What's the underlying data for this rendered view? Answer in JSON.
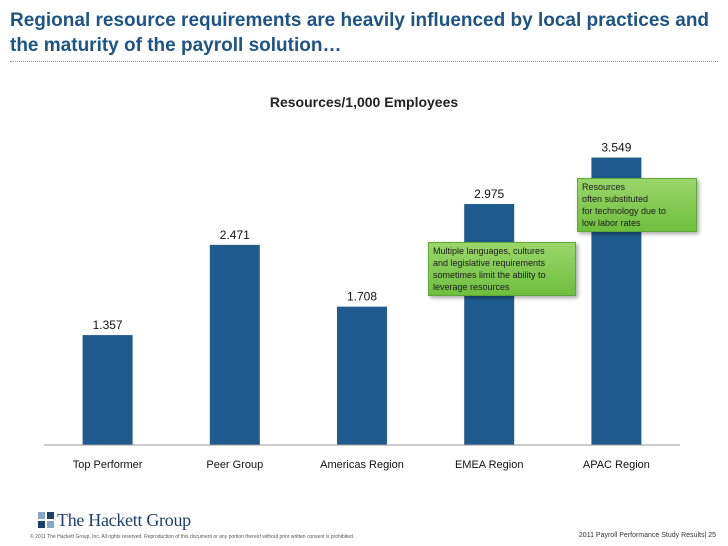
{
  "slide": {
    "title": "Regional resource requirements are heavily influenced by local practices and the maturity of the payroll solution…"
  },
  "chart_data": {
    "type": "bar",
    "title": "Resources/1,000 Employees",
    "categories": [
      "Top Performer",
      "Peer Group",
      "Americas Region",
      "EMEA Region",
      "APAC Region"
    ],
    "values": [
      1.357,
      2.471,
      1.708,
      2.975,
      3.549
    ],
    "data_labels": [
      "1.357",
      "2.471",
      "1.708",
      "2.975",
      "3.549"
    ],
    "xlabel": "",
    "ylabel": "",
    "ylim": [
      0,
      4
    ],
    "grid": false,
    "legend": "none",
    "bar_color": "#1f5b8e"
  },
  "callouts": [
    {
      "text": "Multiple languages, cultures\nand legislative requirements\nsometimes limit the ability to\nleverage resources"
    },
    {
      "text": "Resources\noften substituted\nfor technology due to\nlow labor rates"
    }
  ],
  "footer": {
    "logo_text": "The Hackett Group",
    "copyright": "© 2011 The Hackett Group, Inc. All rights reserved. Reproduction of this document or any portion thereof without prior written consent is prohibited.",
    "page_ref": "2011 Payroll Performance Study Results| 25"
  }
}
